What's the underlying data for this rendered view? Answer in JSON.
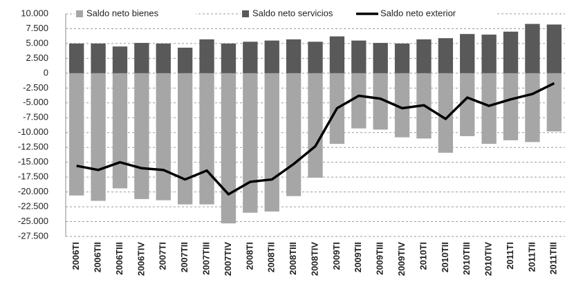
{
  "chart_data": {
    "type": "bar-line",
    "categories": [
      "2006TI",
      "2006TII",
      "2006TIII",
      "2006TIV",
      "2007TI",
      "2007TII",
      "2007TIII",
      "2007TIV",
      "2008TI",
      "2008TII",
      "2008TIII",
      "2008TIV",
      "2009TI",
      "2009TII",
      "2009TIII",
      "2009TIV",
      "2010TI",
      "2010TII",
      "2010TIII",
      "2010TIV",
      "2011TI",
      "2011TII",
      "2011TIII"
    ],
    "series": [
      {
        "name": "Saldo neto bienes",
        "type": "bar",
        "color": "#a6a6a6",
        "values": [
          -20600,
          -21500,
          -19400,
          -21200,
          -21400,
          -22100,
          -22100,
          -25300,
          -23500,
          -23300,
          -20700,
          -17600,
          -11900,
          -9300,
          -9500,
          -10800,
          -11000,
          -13400,
          -10600,
          -11900,
          -11300,
          -11600,
          -9800
        ]
      },
      {
        "name": "Saldo neto servicios",
        "type": "bar",
        "color": "#595959",
        "values": [
          5000,
          5000,
          4500,
          5100,
          5000,
          4300,
          5700,
          5000,
          5300,
          5500,
          5700,
          5300,
          6200,
          5500,
          5100,
          5000,
          5700,
          5900,
          6600,
          6500,
          7000,
          8300,
          8200
        ]
      },
      {
        "name": "Saldo neto exterior",
        "type": "line",
        "color": "#000000",
        "values": [
          -15600,
          -16300,
          -15000,
          -16000,
          -16300,
          -17900,
          -16400,
          -20400,
          -18300,
          -17900,
          -15300,
          -12300,
          -5900,
          -3800,
          -4300,
          -5900,
          -5400,
          -7700,
          -4100,
          -5500,
          -4400,
          -3500,
          -1700
        ]
      }
    ],
    "ylim": [
      -27500,
      10000
    ],
    "yticks": [
      {
        "value": 10000,
        "label": "10.000"
      },
      {
        "value": 7500,
        "label": "7.500"
      },
      {
        "value": 5000,
        "label": "5.000"
      },
      {
        "value": 2500,
        "label": "2.500"
      },
      0,
      {
        "value": -2500,
        "label": "-2.500"
      },
      {
        "value": -5000,
        "label": "-5.000"
      },
      {
        "value": -7500,
        "label": "-7.500"
      },
      {
        "value": -10000,
        "label": "-10.000"
      },
      {
        "value": -12500,
        "label": "-12.500"
      },
      {
        "value": -15000,
        "label": "-15.000"
      },
      {
        "value": -17500,
        "label": "-17.500"
      },
      {
        "value": -20000,
        "label": "-20.000"
      },
      {
        "value": -22500,
        "label": "-22.500"
      },
      {
        "value": -25000,
        "label": "-25.000"
      },
      {
        "value": -27500,
        "label": "-27.500"
      }
    ],
    "grid": true,
    "legend": "top"
  }
}
